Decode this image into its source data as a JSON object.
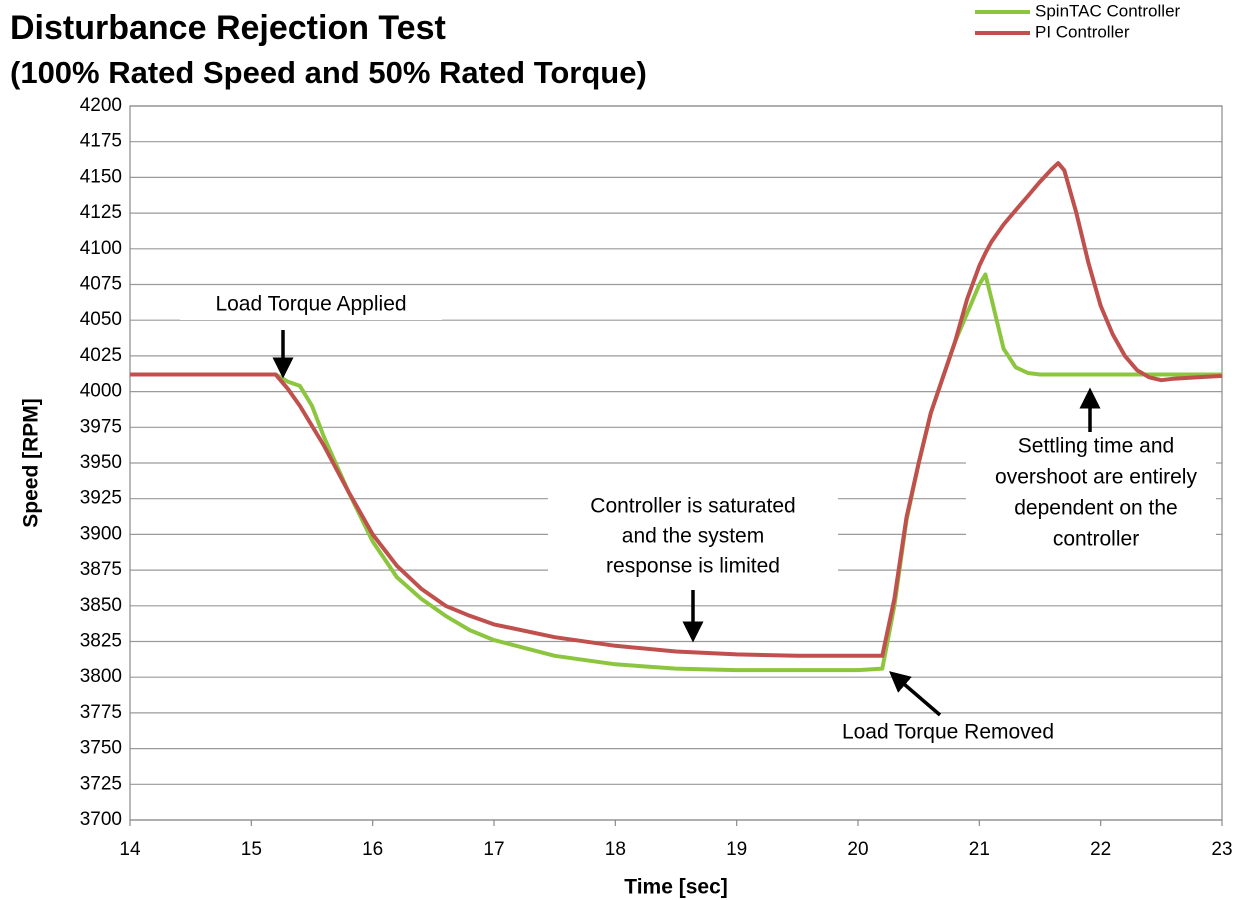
{
  "chart_data": {
    "type": "line",
    "title": "Disturbance Rejection Test",
    "subtitle": "(100% Rated Speed and 50% Rated Torque)",
    "x_label": "Time [sec]",
    "y_label": "Speed [RPM]",
    "x": [
      14,
      14.5,
      15,
      15.2,
      15.3,
      15.4,
      15.5,
      15.6,
      15.8,
      16,
      16.2,
      16.4,
      16.6,
      16.8,
      17,
      17.5,
      18,
      18.5,
      19,
      19.5,
      20,
      20.2,
      20.3,
      20.4,
      20.5,
      20.6,
      20.7,
      20.8,
      20.9,
      21,
      21.05,
      21.1,
      21.2,
      21.3,
      21.4,
      21.5,
      21.6,
      21.65,
      21.7,
      21.8,
      21.9,
      22,
      22.1,
      22.2,
      22.3,
      22.4,
      22.5,
      22.6,
      22.8,
      23
    ],
    "series": [
      {
        "name": "SpinTAC Controller",
        "color": "#8cc63f",
        "values": [
          4012,
          4012,
          4012,
          4012,
          4007,
          4004,
          3990,
          3968,
          3930,
          3895,
          3870,
          3855,
          3843,
          3833,
          3826,
          3815,
          3809,
          3806,
          3805,
          3805,
          3805,
          3806,
          3850,
          3910,
          3950,
          3985,
          4010,
          4035,
          4055,
          4075,
          4082,
          4065,
          4030,
          4017,
          4013,
          4012,
          4012,
          4012,
          4012,
          4012,
          4012,
          4012,
          4012,
          4012,
          4012,
          4012,
          4012,
          4012,
          4012,
          4012
        ]
      },
      {
        "name": "PI Controller",
        "color": "#c0504d",
        "values": [
          4012,
          4012,
          4012,
          4012,
          4002,
          3990,
          3976,
          3962,
          3930,
          3900,
          3878,
          3862,
          3850,
          3843,
          3837,
          3828,
          3822,
          3818,
          3816,
          3815,
          3815,
          3815,
          3855,
          3912,
          3950,
          3985,
          4010,
          4035,
          4065,
          4088,
          4097,
          4105,
          4117,
          4127,
          4137,
          4147,
          4156,
          4160,
          4155,
          4125,
          4090,
          4060,
          4040,
          4025,
          4015,
          4010,
          4008,
          4009,
          4010,
          4011
        ]
      }
    ],
    "xlim": [
      14,
      23
    ],
    "xticks": [
      14,
      15,
      16,
      17,
      18,
      19,
      20,
      21,
      22,
      23
    ],
    "ylim": [
      3700,
      4200
    ],
    "yticks": [
      3700,
      3725,
      3750,
      3775,
      3800,
      3825,
      3850,
      3875,
      3900,
      3925,
      3950,
      3975,
      4000,
      4025,
      4050,
      4075,
      4100,
      4125,
      4150,
      4175,
      4200
    ],
    "grid": true,
    "legend": "top-right",
    "annotations": [
      [
        "Load Torque  Applied"
      ],
      [
        "Controller is saturated",
        "and the system",
        "response  is limited"
      ],
      [
        "Load Torque  Removed"
      ],
      [
        "Settling time and",
        "overshoot  are entirely",
        "dependent  on the",
        "controller"
      ]
    ]
  }
}
